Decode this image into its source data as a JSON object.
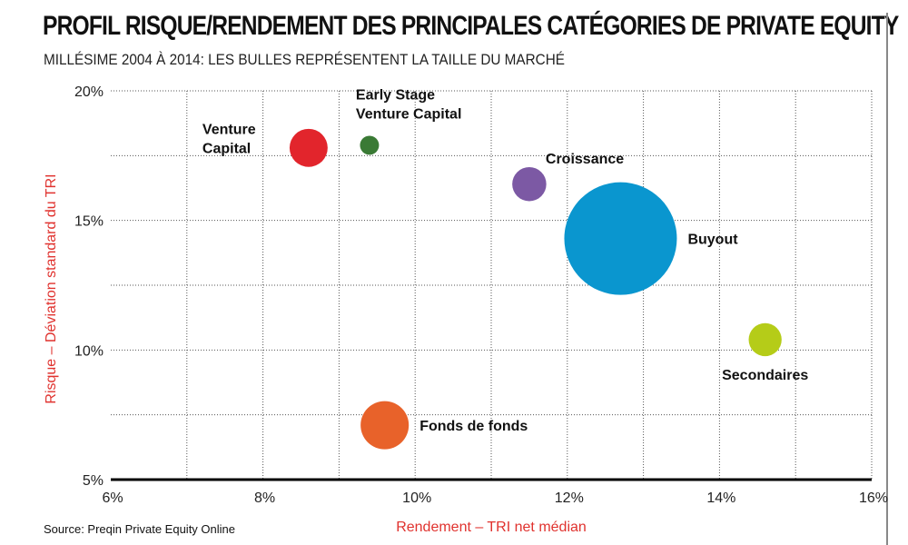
{
  "header": {
    "title": "PROFIL RISQUE/RENDEMENT DES PRINCIPALES CATÉGORIES DE PRIVATE EQUITY",
    "subtitle": "MILLÉSIME 2004 À 2014: LES BULLES REPRÉSENTENT LA TAILLE DU MARCHÉ"
  },
  "footer": {
    "source": "Source: Preqin Private Equity Online"
  },
  "chart_data": {
    "type": "scatter",
    "subtype": "bubble",
    "title": "PROFIL RISQUE/RENDEMENT DES PRINCIPALES CATÉGORIES DE PRIVATE EQUITY",
    "subtitle": "MILLÉSIME 2004 À 2014: LES BULLES REPRÉSENTENT LA TAILLE DU MARCHÉ",
    "xlabel": "Rendement – TRI net médian",
    "ylabel": "Risque – Déviation standard du TRI",
    "xlim": [
      6,
      16
    ],
    "ylim": [
      5,
      20
    ],
    "x_ticks": [
      "6%",
      "8%",
      "10%",
      "12%",
      "14%",
      "16%"
    ],
    "y_ticks": [
      "5%",
      "10%",
      "15%",
      "20%"
    ],
    "grid": "dotted",
    "points": [
      {
        "label_lines": [
          "Venture",
          "Capital"
        ],
        "x": 8.6,
        "y": 17.8,
        "size": 2.0,
        "color": "#e2252c",
        "label_pos": "left"
      },
      {
        "label_lines": [
          "Early Stage",
          "Venture Capital"
        ],
        "x": 9.4,
        "y": 17.9,
        "size": 0.5,
        "color": "#3a7a35",
        "label_pos": "above"
      },
      {
        "label_lines": [
          "Croissance"
        ],
        "x": 11.5,
        "y": 16.4,
        "size": 1.6,
        "color": "#7c59a4",
        "label_pos": "above-right"
      },
      {
        "label_lines": [
          "Buyout"
        ],
        "x": 12.7,
        "y": 14.3,
        "size": 17.5,
        "color": "#0a96cf",
        "label_pos": "right"
      },
      {
        "label_lines": [
          "Secondaires"
        ],
        "x": 14.6,
        "y": 10.4,
        "size": 1.5,
        "color": "#b5cc18",
        "label_pos": "below"
      },
      {
        "label_lines": [
          "Fonds de fonds"
        ],
        "x": 9.6,
        "y": 7.1,
        "size": 3.2,
        "color": "#e8622a",
        "label_pos": "right"
      }
    ]
  }
}
